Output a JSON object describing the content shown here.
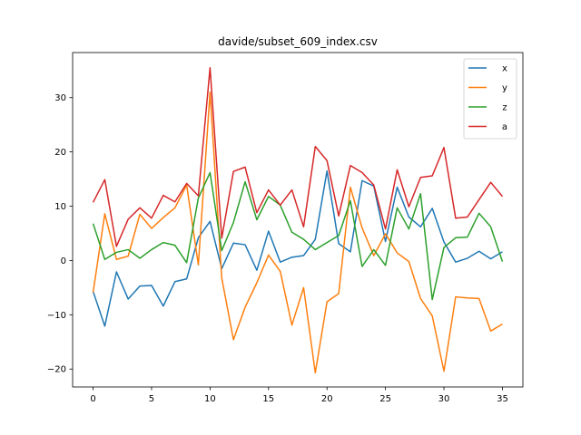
{
  "chart_data": {
    "type": "line",
    "title": "davide/subset_609_index.csv",
    "xlabel": "",
    "ylabel": "",
    "xlim": [
      -1.75,
      36.75
    ],
    "ylim": [
      -23.3,
      38.3
    ],
    "xticks": [
      0,
      5,
      10,
      15,
      20,
      25,
      30,
      35
    ],
    "yticks": [
      -20,
      -10,
      0,
      10,
      20,
      30
    ],
    "grid": false,
    "legend_position": "top-right",
    "x": [
      0,
      1,
      2,
      3,
      4,
      5,
      6,
      7,
      8,
      9,
      10,
      11,
      12,
      13,
      14,
      15,
      16,
      17,
      18,
      19,
      20,
      21,
      22,
      23,
      24,
      25,
      26,
      27,
      28,
      29,
      30,
      31,
      32,
      33,
      34,
      35
    ],
    "series": [
      {
        "name": "x",
        "color": "#1f77b4",
        "values": [
          -5.7,
          -12.1,
          -2.1,
          -7.1,
          -4.7,
          -4.6,
          -8.4,
          -3.9,
          -3.4,
          4.2,
          7.2,
          -1.5,
          3.2,
          2.9,
          -1.8,
          5.4,
          -0.3,
          0.6,
          0.9,
          3.9,
          16.5,
          3.1,
          1.6,
          14.7,
          13.7,
          3.5,
          13.5,
          8.0,
          6.2,
          9.6,
          3.4,
          -0.3,
          0.4,
          1.7,
          0.3,
          1.6
        ]
      },
      {
        "name": "y",
        "color": "#ff7f0e",
        "values": [
          -5.9,
          8.6,
          0.2,
          0.8,
          8.5,
          5.9,
          7.9,
          9.7,
          13.9,
          -0.8,
          31.0,
          -3.2,
          -14.6,
          -8.6,
          -4.1,
          1.0,
          -2.0,
          -11.9,
          -5.0,
          -20.7,
          -7.6,
          -6.1,
          13.5,
          6.0,
          0.9,
          4.9,
          1.4,
          -0.2,
          -7.0,
          -10.2,
          -20.4,
          -6.7,
          -6.9,
          -7.0,
          -13.0,
          -11.7
        ]
      },
      {
        "name": "z",
        "color": "#2ca02c",
        "values": [
          6.8,
          0.2,
          1.5,
          2.0,
          0.4,
          2.0,
          3.3,
          2.8,
          -0.4,
          11.5,
          16.2,
          1.8,
          7.0,
          14.5,
          7.5,
          11.8,
          10.2,
          5.2,
          3.9,
          2.0,
          3.3,
          4.6,
          11.0,
          -1.1,
          2.0,
          -0.9,
          9.7,
          5.8,
          12.3,
          -7.2,
          2.4,
          4.2,
          4.3,
          8.7,
          6.2,
          -0.2
        ]
      },
      {
        "name": "a",
        "color": "#d62728",
        "values": [
          10.7,
          14.9,
          2.6,
          7.6,
          9.7,
          7.8,
          12.0,
          10.8,
          14.2,
          11.9,
          35.5,
          4.1,
          16.4,
          17.2,
          8.8,
          13.0,
          10.2,
          13.0,
          6.2,
          21.0,
          18.4,
          8.2,
          17.5,
          16.2,
          13.9,
          5.8,
          16.7,
          9.9,
          15.3,
          15.6,
          20.8,
          7.8,
          8.0,
          11.2,
          14.4,
          11.8
        ]
      }
    ]
  }
}
